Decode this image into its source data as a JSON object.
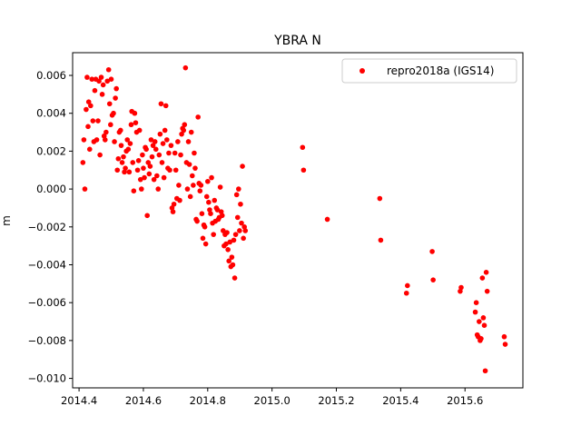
{
  "chart_data": {
    "type": "scatter",
    "title": "YBRA N",
    "xlabel": "",
    "ylabel": "m",
    "xlim": [
      2014.38,
      2015.78
    ],
    "ylim": [
      -0.0105,
      0.0072
    ],
    "xticks": [
      2014.4,
      2014.6,
      2014.8,
      2015.0,
      2015.2,
      2015.4,
      2015.6
    ],
    "xtick_labels": [
      "2014.4",
      "2014.6",
      "2014.8",
      "2015.0",
      "2015.2",
      "2015.4",
      "2015.6"
    ],
    "yticks": [
      -0.01,
      -0.008,
      -0.006,
      -0.004,
      -0.002,
      0.0,
      0.002,
      0.004,
      0.006
    ],
    "ytick_labels": [
      "−0.010",
      "−0.008",
      "−0.006",
      "−0.004",
      "−0.002",
      "0.000",
      "0.002",
      "0.004",
      "0.006"
    ],
    "grid": false,
    "legend_position": "top-right",
    "series": [
      {
        "name": "repro2018a (IGS14)",
        "color": "#ff0000",
        "marker": "circle",
        "points": [
          [
            2014.412,
            0.0014
          ],
          [
            2014.415,
            0.0026
          ],
          [
            2014.418,
            0.0
          ],
          [
            2014.422,
            0.0042
          ],
          [
            2014.425,
            0.0059
          ],
          [
            2014.428,
            0.0033
          ],
          [
            2014.43,
            0.0046
          ],
          [
            2014.433,
            0.0021
          ],
          [
            2014.436,
            0.0044
          ],
          [
            2014.44,
            0.0058
          ],
          [
            2014.443,
            0.0036
          ],
          [
            2014.446,
            0.0025
          ],
          [
            2014.449,
            0.0052
          ],
          [
            2014.452,
            0.0058
          ],
          [
            2014.455,
            0.0026
          ],
          [
            2014.459,
            0.0036
          ],
          [
            2014.462,
            0.0057
          ],
          [
            2014.465,
            0.0018
          ],
          [
            2014.469,
            0.0059
          ],
          [
            2014.472,
            0.005
          ],
          [
            2014.475,
            0.0055
          ],
          [
            2014.478,
            0.0028
          ],
          [
            2014.481,
            0.0026
          ],
          [
            2014.484,
            0.003
          ],
          [
            2014.488,
            0.0057
          ],
          [
            2014.492,
            0.0063
          ],
          [
            2014.495,
            0.0045
          ],
          [
            2014.498,
            0.0034
          ],
          [
            2014.5,
            0.0058
          ],
          [
            2014.503,
            0.0039
          ],
          [
            2014.507,
            0.004
          ],
          [
            2014.51,
            0.0025
          ],
          [
            2014.513,
            0.0048
          ],
          [
            2014.516,
            0.0053
          ],
          [
            2014.519,
            0.001
          ],
          [
            2014.522,
            0.0016
          ],
          [
            2014.525,
            0.003
          ],
          [
            2014.529,
            0.0031
          ],
          [
            2014.531,
            0.0023
          ],
          [
            2014.534,
            0.0014
          ],
          [
            2014.538,
            0.0017
          ],
          [
            2014.541,
            0.0009
          ],
          [
            2014.544,
            0.0011
          ],
          [
            2014.547,
            0.002
          ],
          [
            2014.55,
            0.0026
          ],
          [
            2014.553,
            0.0021
          ],
          [
            2014.556,
            0.0009
          ],
          [
            2014.559,
            0.0024
          ],
          [
            2014.562,
            0.0034
          ],
          [
            2014.564,
            0.0041
          ],
          [
            2014.567,
            0.0014
          ],
          [
            2014.57,
            -0.0001
          ],
          [
            2014.573,
            0.004
          ],
          [
            2014.576,
            0.0035
          ],
          [
            2014.579,
            0.003
          ],
          [
            2014.582,
            0.001
          ],
          [
            2014.585,
            0.0015
          ],
          [
            2014.588,
            0.0031
          ],
          [
            2014.591,
            0.0005
          ],
          [
            2014.594,
            0.0
          ],
          [
            2014.597,
            0.0018
          ],
          [
            2014.6,
            0.0011
          ],
          [
            2014.603,
            0.0006
          ],
          [
            2014.606,
            0.0022
          ],
          [
            2014.609,
            0.0021
          ],
          [
            2014.612,
            -0.0014
          ],
          [
            2014.615,
            0.0014
          ],
          [
            2014.618,
            0.0008
          ],
          [
            2014.621,
            0.0012
          ],
          [
            2014.624,
            0.0026
          ],
          [
            2014.627,
            0.0017
          ],
          [
            2014.63,
            0.0023
          ],
          [
            2014.633,
            0.0005
          ],
          [
            2014.636,
            0.0025
          ],
          [
            2014.639,
            0.0021
          ],
          [
            2014.642,
            0.0007
          ],
          [
            2014.646,
            0.0
          ],
          [
            2014.649,
            0.0018
          ],
          [
            2014.652,
            0.0029
          ],
          [
            2014.655,
            0.0045
          ],
          [
            2014.658,
            0.0014
          ],
          [
            2014.661,
            0.0024
          ],
          [
            2014.664,
            0.0006
          ],
          [
            2014.667,
            0.0031
          ],
          [
            2014.67,
            0.0044
          ],
          [
            2014.673,
            0.0026
          ],
          [
            2014.676,
            0.0011
          ],
          [
            2014.679,
            0.0019
          ],
          [
            2014.682,
            0.001
          ],
          [
            2014.686,
            0.0023
          ],
          [
            2014.689,
            -0.001
          ],
          [
            2014.692,
            -0.0012
          ],
          [
            2014.695,
            -0.0008
          ],
          [
            2014.698,
            0.0019
          ],
          [
            2014.701,
            0.001
          ],
          [
            2014.704,
            -0.0005
          ],
          [
            2014.707,
            0.0025
          ],
          [
            2014.71,
            0.0002
          ],
          [
            2014.713,
            -0.0006
          ],
          [
            2014.716,
            0.0018
          ],
          [
            2014.719,
            0.0029
          ],
          [
            2014.722,
            0.0032
          ],
          [
            2014.725,
            0.0031
          ],
          [
            2014.728,
            0.0034
          ],
          [
            2014.731,
            0.0064
          ],
          [
            2014.734,
            0.0014
          ],
          [
            2014.737,
            0.0
          ],
          [
            2014.74,
            0.0025
          ],
          [
            2014.743,
            0.0013
          ],
          [
            2014.746,
            -0.0004
          ],
          [
            2014.749,
            0.003
          ],
          [
            2014.752,
            0.0007
          ],
          [
            2014.755,
            0.0002
          ],
          [
            2014.758,
            0.0019
          ],
          [
            2014.761,
            0.0011
          ],
          [
            2014.764,
            -0.0016
          ],
          [
            2014.767,
            -0.0017
          ],
          [
            2014.77,
            0.0038
          ],
          [
            2014.773,
            0.0003
          ],
          [
            2014.776,
            -0.0001
          ],
          [
            2014.779,
            0.0002
          ],
          [
            2014.782,
            -0.0013
          ],
          [
            2014.785,
            -0.0026
          ],
          [
            2014.788,
            -0.0019
          ],
          [
            2014.791,
            -0.002
          ],
          [
            2014.794,
            -0.0029
          ],
          [
            2014.797,
            -0.0004
          ],
          [
            2014.8,
            0.0004
          ],
          [
            2014.803,
            -0.0007
          ],
          [
            2014.806,
            -0.0011
          ],
          [
            2014.809,
            -0.0013
          ],
          [
            2014.812,
            0.0006
          ],
          [
            2014.815,
            -0.0018
          ],
          [
            2014.818,
            -0.0024
          ],
          [
            2014.821,
            -0.0006
          ],
          [
            2014.824,
            -0.0017
          ],
          [
            2014.827,
            -0.001
          ],
          [
            2014.83,
            -0.0011
          ],
          [
            2014.833,
            -0.0016
          ],
          [
            2014.836,
            -0.0015
          ],
          [
            2014.839,
            0.0001
          ],
          [
            2014.842,
            -0.0012
          ],
          [
            2014.845,
            -0.0014
          ],
          [
            2014.848,
            -0.0022
          ],
          [
            2014.851,
            -0.003
          ],
          [
            2014.854,
            -0.0024
          ],
          [
            2014.857,
            -0.0029
          ],
          [
            2014.86,
            -0.0023
          ],
          [
            2014.863,
            -0.0032
          ],
          [
            2014.866,
            -0.0038
          ],
          [
            2014.869,
            -0.0028
          ],
          [
            2014.872,
            -0.0041
          ],
          [
            2014.875,
            -0.0036
          ],
          [
            2014.878,
            -0.004
          ],
          [
            2014.881,
            -0.0027
          ],
          [
            2014.884,
            -0.0047
          ],
          [
            2014.887,
            -0.0024
          ],
          [
            2014.89,
            -0.0003
          ],
          [
            2014.893,
            -0.0015
          ],
          [
            2014.896,
            0.0
          ],
          [
            2014.899,
            -0.0022
          ],
          [
            2014.902,
            -0.0008
          ],
          [
            2014.905,
            -0.0018
          ],
          [
            2014.908,
            0.0012
          ],
          [
            2014.911,
            -0.0026
          ],
          [
            2014.914,
            -0.002
          ],
          [
            2014.917,
            -0.0022
          ],
          [
            2015.095,
            0.0022
          ],
          [
            2015.098,
            0.001
          ],
          [
            2015.172,
            -0.0016
          ],
          [
            2015.335,
            -0.0005
          ],
          [
            2015.338,
            -0.0027
          ],
          [
            2015.418,
            -0.0055
          ],
          [
            2015.421,
            -0.0051
          ],
          [
            2015.498,
            -0.0033
          ],
          [
            2015.501,
            -0.0048
          ],
          [
            2015.585,
            -0.0054
          ],
          [
            2015.588,
            -0.0052
          ],
          [
            2015.632,
            -0.0065
          ],
          [
            2015.635,
            -0.006
          ],
          [
            2015.638,
            -0.0077
          ],
          [
            2015.641,
            -0.0078
          ],
          [
            2015.644,
            -0.007
          ],
          [
            2015.647,
            -0.008
          ],
          [
            2015.65,
            -0.0079
          ],
          [
            2015.654,
            -0.0047
          ],
          [
            2015.657,
            -0.0068
          ],
          [
            2015.66,
            -0.0072
          ],
          [
            2015.663,
            -0.0096
          ],
          [
            2015.666,
            -0.0044
          ],
          [
            2015.669,
            -0.0054
          ],
          [
            2015.722,
            -0.0078
          ],
          [
            2015.725,
            -0.0082
          ]
        ]
      }
    ]
  }
}
